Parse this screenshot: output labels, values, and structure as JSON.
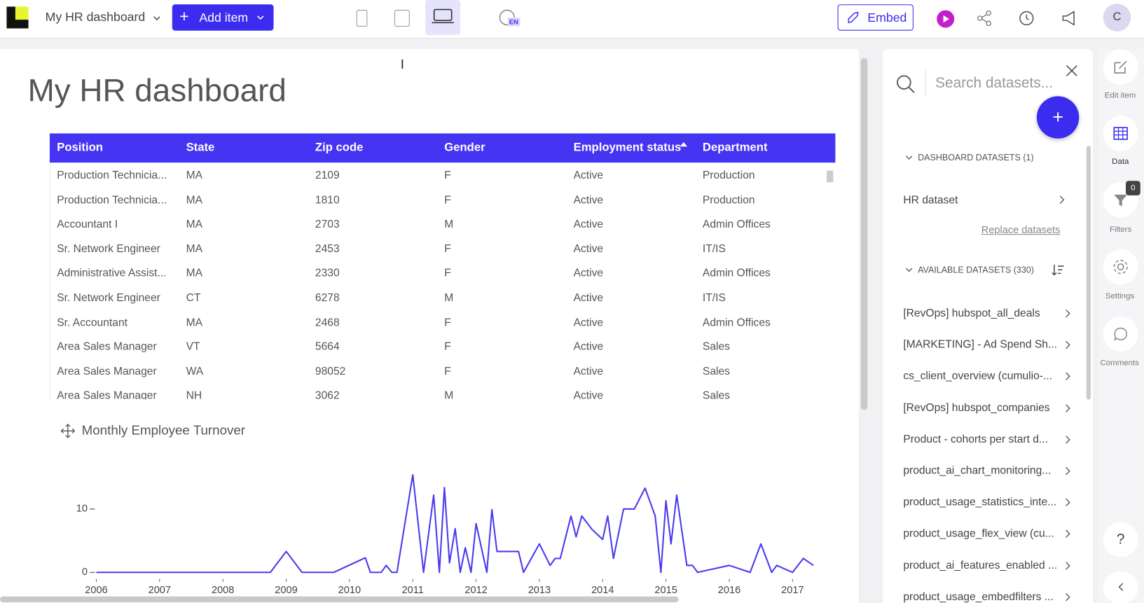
{
  "header": {
    "dashboard_name": "My HR dashboard",
    "add_item": "Add item",
    "language": "EN",
    "embed": "Embed",
    "avatar": "C"
  },
  "dashboard": {
    "title": "My HR dashboard",
    "table": {
      "columns": [
        "Position",
        "State",
        "Zip code",
        "Gender",
        "Employment status",
        "Department"
      ],
      "rows": [
        [
          "Production Technicia...",
          "MA",
          "2109",
          "F",
          "Active",
          "Production"
        ],
        [
          "Production Technicia...",
          "MA",
          "1810",
          "F",
          "Active",
          "Production"
        ],
        [
          "Accountant I",
          "MA",
          "2703",
          "M",
          "Active",
          "Admin Offices"
        ],
        [
          "Sr. Network Engineer",
          "MA",
          "2453",
          "F",
          "Active",
          "IT/IS"
        ],
        [
          "Administrative Assist...",
          "MA",
          "2330",
          "F",
          "Active",
          "Admin Offices"
        ],
        [
          "Sr. Network Engineer",
          "CT",
          "6278",
          "M",
          "Active",
          "IT/IS"
        ],
        [
          "Sr. Accountant",
          "MA",
          "2468",
          "F",
          "Active",
          "Admin Offices"
        ],
        [
          "Area Sales Manager",
          "VT",
          "5664",
          "F",
          "Active",
          "Sales"
        ],
        [
          "Area Sales Manager",
          "WA",
          "98052",
          "F",
          "Active",
          "Sales"
        ],
        [
          "Area Sales Manager",
          "NH",
          "3062",
          "M",
          "Active",
          "Sales"
        ]
      ]
    },
    "chart_data": {
      "type": "line",
      "title": "Monthly Employee Turnover",
      "x": [
        2006,
        2008.75,
        2009,
        2009.25,
        2009.75,
        2010.25,
        2010.33,
        2010.5,
        2010.58,
        2010.67,
        2010.75,
        2011,
        2011.17,
        2011.33,
        2011.42,
        2011.5,
        2011.58,
        2011.67,
        2011.75,
        2011.83,
        2011.92,
        2012,
        2012.17,
        2012.25,
        2012.33,
        2012.67,
        2012.75,
        2013,
        2013.17,
        2013.25,
        2013.33,
        2013.5,
        2013.58,
        2013.67,
        2013.83,
        2014,
        2014.08,
        2014.17,
        2014.33,
        2014.5,
        2014.67,
        2014.83,
        2014.92,
        2015,
        2015.08,
        2015.17,
        2015.33,
        2015.42,
        2015.5,
        2016,
        2016.33,
        2016.5,
        2016.67,
        2016.75,
        2017,
        2017.17,
        2017.33
      ],
      "series": [
        {
          "color": "#4a3aef",
          "values": [
            0,
            0,
            3.3,
            0,
            0,
            2.3,
            0,
            0,
            1.1,
            0,
            0,
            15.4,
            0,
            12.2,
            0,
            13.4,
            1.5,
            6.9,
            0,
            3.9,
            0,
            7.7,
            0,
            9.9,
            3.3,
            3.3,
            0,
            4.5,
            1.1,
            2.2,
            2.2,
            8.9,
            5.6,
            8.9,
            6.8,
            5.2,
            8.9,
            2.2,
            10,
            10,
            13.3,
            8.9,
            0,
            11.3,
            4.5,
            12.2,
            1.1,
            1.1,
            0,
            1.1,
            0,
            4.5,
            0,
            1.1,
            0,
            2.2,
            1.1
          ]
        }
      ],
      "xlim": [
        2006,
        2017.4
      ],
      "xticks": [
        2006,
        2007,
        2008,
        2009,
        2010,
        2011,
        2012,
        2013,
        2014,
        2015,
        2016,
        2017
      ],
      "ylim": [
        0,
        16
      ],
      "yticks": [
        0,
        10
      ]
    }
  },
  "data_panel": {
    "search_placeholder": "Search datasets...",
    "dashboard_datasets": "DASHBOARD DATASETS (1)",
    "current_dataset": "HR dataset",
    "replace": "Replace datasets",
    "available_datasets": "AVAILABLE DATASETS (330)",
    "datasets": [
      "[RevOps] hubspot_all_deals",
      "[MARKETING] - Ad Spend Sh...",
      "cs_client_overview (cumulio-...",
      "[RevOps] hubspot_companies",
      "Product - cohorts per start d...",
      "product_ai_chart_monitoring...",
      "product_usage_statistics_inte...",
      "product_usage_flex_view (cu...",
      "product_ai_features_enabled ...",
      "product_usage_embedfilters ..."
    ]
  },
  "sidebar": {
    "edit_item": "Edit item",
    "data": "Data",
    "filters": "Filters",
    "filter_count": 0,
    "settings": "Settings",
    "comments": "Comments",
    "help": "?"
  }
}
